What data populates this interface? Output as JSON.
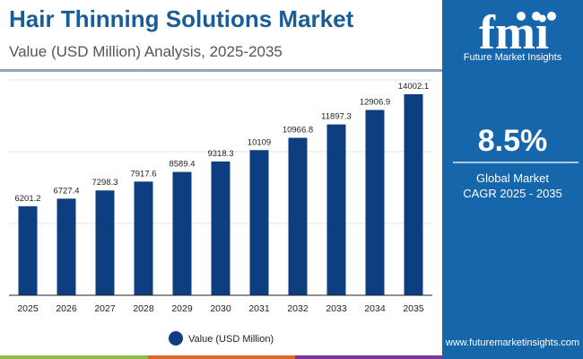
{
  "header": {
    "title": "Hair Thinning Solutions Market",
    "subtitle": "Value (USD Million) Analysis, 2025-2035"
  },
  "panel": {
    "brand_logo": "fmi",
    "brand_name": "Future Market Insights",
    "cagr_value": "8.5%",
    "cagr_line1": "Global Market",
    "cagr_line2": "CAGR 2025 - 2035",
    "url": "www.futuremarketinsights.com"
  },
  "colors": {
    "bar": "#0d3f80",
    "panel": "#1566aa",
    "title": "#1a5d96",
    "stripes": [
      "#8bbd44",
      "#e0672a",
      "#7a3896"
    ]
  },
  "chart_data": {
    "type": "bar",
    "categories": [
      "2025",
      "2026",
      "2027",
      "2028",
      "2029",
      "2030",
      "2031",
      "2032",
      "2033",
      "2034",
      "2035"
    ],
    "series": [
      {
        "name": "Value (USD Million)",
        "values": [
          6201.2,
          6727.4,
          7298.3,
          7917.6,
          8589.4,
          9318.3,
          10109,
          10966.8,
          11897.3,
          12906.9,
          14002.1
        ]
      }
    ],
    "value_labels": [
      "6201.2",
      "6727.4",
      "7298.3",
      "7917.6",
      "8589.4",
      "9318.3",
      "10109",
      "10966.8",
      "11897.3",
      "12906.9",
      "14002.1"
    ],
    "ylim": [
      0,
      15000
    ],
    "grid": true,
    "legend": "bottom",
    "xlabel": "",
    "ylabel": ""
  }
}
